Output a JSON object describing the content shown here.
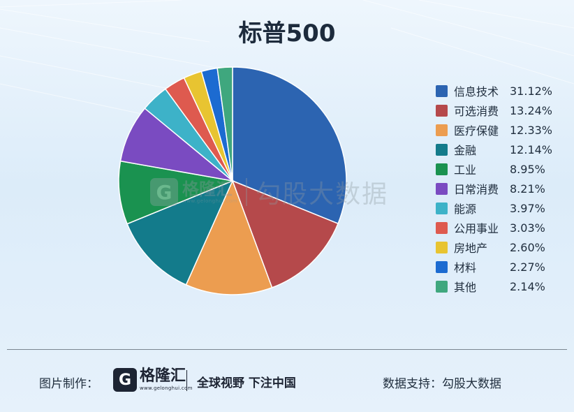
{
  "chart_data": {
    "type": "pie",
    "title": "标普500",
    "legend_position": "right",
    "slices": [
      {
        "label": "信息技术",
        "value": 31.12,
        "display": "31.12%",
        "color": "#2c64b1"
      },
      {
        "label": "可选消费",
        "value": 13.24,
        "display": "13.24%",
        "color": "#b5494b"
      },
      {
        "label": "医疗保健",
        "value": 12.33,
        "display": "12.33%",
        "color": "#ec9d50"
      },
      {
        "label": "金融",
        "value": 12.14,
        "display": "12.14%",
        "color": "#137b8b"
      },
      {
        "label": "工业",
        "value": 8.95,
        "display": "8.95%",
        "color": "#1a9250"
      },
      {
        "label": "日常消费",
        "value": 8.21,
        "display": "8.21%",
        "color": "#7a4bc1"
      },
      {
        "label": "能源",
        "value": 3.97,
        "display": "3.97%",
        "color": "#3db2c8"
      },
      {
        "label": "公用事业",
        "value": 3.03,
        "display": "3.03%",
        "color": "#de5a4f"
      },
      {
        "label": "房地产",
        "value": 2.6,
        "display": "2.60%",
        "color": "#e8c431"
      },
      {
        "label": "材料",
        "value": 2.27,
        "display": "2.27%",
        "color": "#1c6bd1"
      },
      {
        "label": "其他",
        "value": 2.14,
        "display": "2.14%",
        "color": "#3fa77e"
      }
    ]
  },
  "watermark": {
    "logo_letter": "G",
    "brand": "格隆汇",
    "url": "www.gelonghui.com",
    "text": "勾股大数据"
  },
  "footer": {
    "made_by_label": "图片制作：",
    "logo_letter": "G",
    "brand": "格隆汇",
    "url": "www.gelonghui.com",
    "slogan": "全球视野 下注中国",
    "support_label": "数据支持：勾股大数据"
  }
}
